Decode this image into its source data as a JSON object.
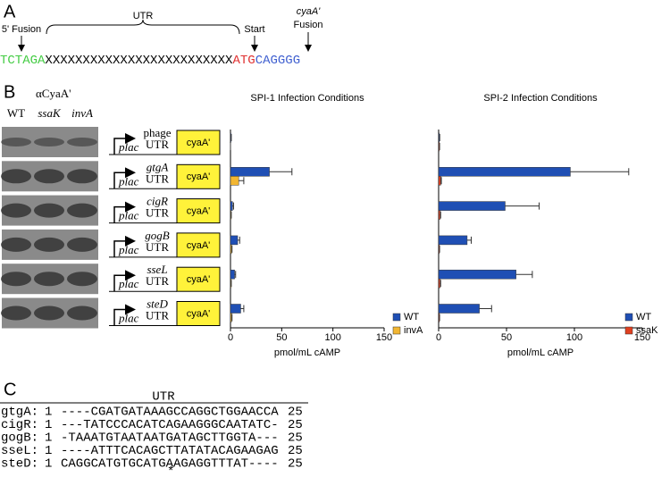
{
  "panel_labels": [
    "A",
    "B",
    "C"
  ],
  "fusion": {
    "five_prime": "5' Fusion",
    "utr": "UTR",
    "start": "Start",
    "cyaa": "cyaA'",
    "fusion": "Fusion",
    "sequence": [
      {
        "text": "TCTAGA",
        "color": "#44cc44"
      },
      {
        "text": "XXXXXXXXXXXXXXXXXXXXXXXXX",
        "color": "#000000"
      },
      {
        "text": "ATG",
        "color": "#e03030"
      },
      {
        "text": "CAGGGG",
        "color": "#4060d0"
      }
    ]
  },
  "blot": {
    "antibody": "αCyaA'",
    "lanes": [
      "WT",
      "ssaK",
      "invA"
    ]
  },
  "constructs": {
    "promoter": "plac",
    "reporter": "cyaA'",
    "rows": [
      {
        "utr": "UTR",
        "name_color": "#44cc44",
        "utr_color": "#44cc44"
      },
      {
        "utr": "UTR",
        "name_color": "#7a1f1f",
        "utr_color": "#000000"
      },
      {
        "utr": "UTR",
        "name_color": "#cc44cc",
        "utr_color": "#cc44cc"
      },
      {
        "utr": "UTR",
        "name_color": "#2a2ad0",
        "utr_color": "#2a2ad0"
      },
      {
        "utr": "UTR",
        "name_color": "#e02020",
        "utr_color": "#e02020"
      },
      {
        "utr": "UTR",
        "name_color": "#000000",
        "utr_color": "#000000"
      }
    ]
  },
  "chart_data": [
    {
      "type": "bar",
      "orientation": "horizontal",
      "title": "SPI-1 Infection Conditions",
      "x_label": "pmol/mL cAMP",
      "categories": [
        "phage",
        "gtgA",
        "cigR",
        "gogB",
        "sseL",
        "steD"
      ],
      "series": [
        {
          "name": "WT",
          "color": "#1f4fb4",
          "values": [
            0.5,
            38,
            2,
            7,
            4,
            10
          ],
          "errors": [
            0.3,
            22,
            1,
            2,
            1,
            3
          ]
        },
        {
          "name": "invA",
          "color": "#f2b632",
          "values": [
            0,
            8,
            0.5,
            1,
            0.5,
            1
          ],
          "errors": [
            0,
            5,
            0.3,
            0.5,
            0.3,
            0.5
          ]
        }
      ],
      "xlim": [
        0,
        150
      ],
      "xticks": [
        0,
        50,
        100,
        150
      ],
      "legend": "right"
    },
    {
      "type": "bar",
      "orientation": "horizontal",
      "title": "SPI-2 Infection Conditions",
      "x_label": "pmol/mL cAMP",
      "categories": [
        null,
        null,
        null,
        null,
        null,
        null
      ],
      "series": [
        {
          "name": "WT",
          "color": "#1f4fb4",
          "values": [
            0.5,
            97,
            49,
            21,
            57,
            30
          ],
          "errors": [
            0.3,
            43,
            25,
            3,
            12,
            9
          ]
        },
        {
          "name": "ssaK",
          "color": "#e04020",
          "values": [
            0.5,
            1.5,
            1,
            0.5,
            1,
            0.5
          ],
          "errors": [
            0.2,
            0.5,
            0.5,
            0.2,
            0.5,
            0.2
          ]
        }
      ],
      "xlim": [
        0,
        150
      ],
      "xticks": [
        0,
        50,
        100,
        150
      ],
      "legend": "right"
    }
  ],
  "alignment": {
    "header": "UTR",
    "marker": "*",
    "rows": [
      {
        "name": "gtgA:",
        "start": "1",
        "seq": "----CGATGATAAAGCCAGGCTGGAACCA",
        "end": "25"
      },
      {
        "name": "cigR:",
        "start": "1",
        "seq": "---TATCCCACATCAGAAGGGCAATATC-",
        "end": "25"
      },
      {
        "name": "gogB:",
        "start": "1",
        "seq": "-TAAATGTAATAATGATAGCTTGGTA---",
        "end": "25"
      },
      {
        "name": "sseL:",
        "start": "1",
        "seq": "----ATTTCACAGCTTATATACAGAAGAG",
        "end": "25"
      },
      {
        "name": "steD:",
        "start": "1",
        "seq": "CAGGCATGTGCATGAAGAGGTTTAT----",
        "end": "25"
      }
    ]
  }
}
